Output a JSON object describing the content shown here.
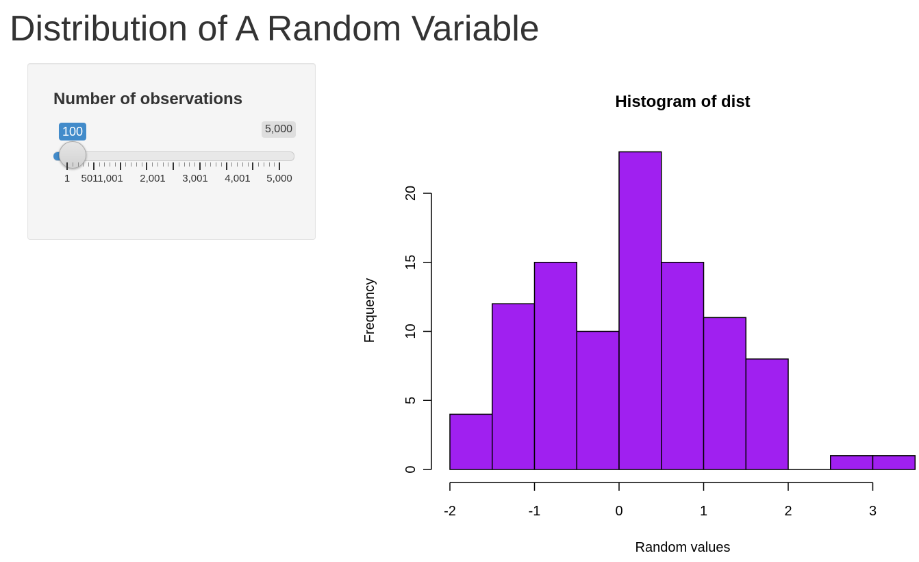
{
  "page": {
    "title": "Distribution of A Random Variable"
  },
  "sidebar": {
    "control_label": "Number of observations",
    "slider": {
      "min": 1,
      "max": 5000,
      "value": 100,
      "value_label": "100",
      "max_label": "5,000",
      "fill_color": "#428bca",
      "grid_labels": [
        "1",
        "501",
        "1,001",
        "2,001",
        "3,001",
        "4,001",
        "5,000"
      ]
    }
  },
  "chart_data": {
    "type": "bar",
    "title": "Histogram of dist",
    "xlabel": "Random values",
    "ylabel": "Frequency",
    "bar_color": "#a020f0",
    "bin_width": 0.5,
    "bins": [
      {
        "x0": -2.0,
        "x1": -1.5,
        "count": 4
      },
      {
        "x0": -1.5,
        "x1": -1.0,
        "count": 12
      },
      {
        "x0": -1.0,
        "x1": -0.5,
        "count": 15
      },
      {
        "x0": -0.5,
        "x1": 0.0,
        "count": 10
      },
      {
        "x0": 0.0,
        "x1": 0.5,
        "count": 23
      },
      {
        "x0": 0.5,
        "x1": 1.0,
        "count": 15
      },
      {
        "x0": 1.0,
        "x1": 1.5,
        "count": 11
      },
      {
        "x0": 1.5,
        "x1": 2.0,
        "count": 8
      },
      {
        "x0": 2.0,
        "x1": 2.5,
        "count": 0
      },
      {
        "x0": 2.5,
        "x1": 3.0,
        "count": 1
      },
      {
        "x0": 3.0,
        "x1": 3.5,
        "count": 1
      }
    ],
    "xticks": [
      {
        "value": -2,
        "label": "-2"
      },
      {
        "value": -1,
        "label": "-1"
      },
      {
        "value": 0,
        "label": "0"
      },
      {
        "value": 1,
        "label": "1"
      },
      {
        "value": 2,
        "label": "2"
      },
      {
        "value": 3,
        "label": "3"
      }
    ],
    "yticks": [
      {
        "value": 0,
        "label": "0"
      },
      {
        "value": 5,
        "label": "5"
      },
      {
        "value": 10,
        "label": "10"
      },
      {
        "value": 15,
        "label": "15"
      },
      {
        "value": 20,
        "label": "20"
      }
    ],
    "xlim": [
      -2,
      3.5
    ],
    "ylim": [
      0,
      23
    ]
  }
}
